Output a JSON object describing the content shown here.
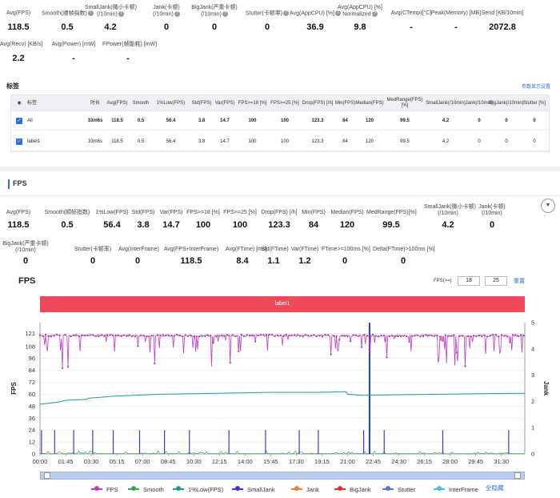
{
  "summary_metrics": [
    {
      "label": "Avg(FPS)",
      "value": "118.5"
    },
    {
      "label": "Smooth(顺帧指数)",
      "value": "0.5",
      "help": true
    },
    {
      "label": "SmallJank(微小卡顿)\n(/10min)",
      "value": "4.2",
      "help": true
    },
    {
      "label": "Jank(卡顿)\n(/10min)",
      "value": "0",
      "help": true
    },
    {
      "label": "BigJank(严重卡顿)\n(/10min)",
      "value": "0",
      "help": true
    },
    {
      "label": "Stutter(卡顿率)",
      "value": "0",
      "help": true
    },
    {
      "label": "Avg(AppCPU) [%]",
      "value": "36.9",
      "help": true
    },
    {
      "label": "Avg(AppCPU) [%]\nNormalized",
      "value": "9.8",
      "help": true
    },
    {
      "label": "Avg(CTemp)[°C]",
      "value": "-"
    },
    {
      "label": "Peak(Memory) [MB]",
      "value": "-"
    },
    {
      "label": "Send [KB/10min]",
      "value": "2072.8"
    },
    {
      "label": "Avg(Recv) [KB/s]",
      "value": "2.2"
    },
    {
      "label": "Avg(Power) [mW]",
      "value": "-"
    },
    {
      "label": "FPower(帧能耗) [mW]",
      "value": "-"
    }
  ],
  "labels_section": {
    "title": "标签",
    "param_link": "参数显示设置",
    "columns": [
      "标签",
      "时长",
      "Avg(FPS)",
      "Smooth",
      "1%Low(FPS)",
      "Std(FPS)",
      "Var(FPS)",
      "FPS>=18 [%]",
      "FPS>=25 [%]",
      "Drop(FPS) [/h]",
      "Min(FPS)",
      "Median(FPS)",
      "MedRange(FPS)[%]",
      "SmallJank\n(/10min)",
      "Jank\n(/10min)",
      "BigJank\n(/10min)",
      "Stutter [%]"
    ],
    "rows": [
      [
        "All",
        "33m6s",
        "118.5",
        "0.5",
        "56.4",
        "3.8",
        "14.7",
        "100",
        "100",
        "123.3",
        "84",
        "120",
        "99.5",
        "4.2",
        "0",
        "0",
        "0"
      ],
      [
        "label1",
        "33m6s",
        "118.5",
        "0.5",
        "56.4",
        "3.8",
        "14.7",
        "100",
        "100",
        "123.3",
        "84",
        "120",
        "99.5",
        "4.2",
        "0",
        "0",
        "0"
      ]
    ]
  },
  "fps_section": {
    "title": "FPS",
    "metrics_row1": [
      {
        "label": "Avg(FPS)",
        "value": "118.5"
      },
      {
        "label": "Smooth(顺帧指数)",
        "value": "0.5"
      },
      {
        "label": "1%Low(FPS)",
        "value": "56.4"
      },
      {
        "label": "Std(FPS)",
        "value": "3.8"
      },
      {
        "label": "Var(FPS)",
        "value": "14.7"
      },
      {
        "label": "FPS>=18 [%]",
        "value": "100"
      },
      {
        "label": "FPS>=25 [%]",
        "value": "100"
      },
      {
        "label": "Drop(FPS) [/h]",
        "value": "123.3"
      },
      {
        "label": "Min(FPS)",
        "value": "84"
      },
      {
        "label": "Median(FPS)",
        "value": "120"
      },
      {
        "label": "MedRange(FPS)[%]",
        "value": "99.5"
      },
      {
        "label": "SmallJank(微小卡顿)\n(/10min)",
        "value": "4.2"
      },
      {
        "label": "Jank(卡顿)\n(/10min)",
        "value": "0"
      }
    ],
    "metrics_row2": [
      {
        "label": "BigJank(严重卡顿)\n(/10min)",
        "value": "0"
      },
      {
        "label": "Stutter(卡顿率)",
        "value": "0"
      },
      {
        "label": "Avg(InterFrame)",
        "value": "0"
      },
      {
        "label": "Avg(FPS+InterFrame)",
        "value": "118.5"
      },
      {
        "label": "Avg(FTime) [ms]",
        "value": "8.4"
      },
      {
        "label": "Std(FTime)",
        "value": "1.1"
      },
      {
        "label": "Var(FTime)",
        "value": "1.2"
      },
      {
        "label": "FTime>=100ms [%]",
        "value": "0"
      },
      {
        "label": "Delta(FTime)>100ms [%]",
        "value": "0"
      }
    ]
  },
  "chart_header": {
    "title": "FPS",
    "fps_ge_label": "FPS(>=)",
    "fps_ge_values": [
      "18",
      "25"
    ],
    "reset": "重置",
    "label_bar": "label1"
  },
  "chart_data": {
    "type": "line",
    "ylabel": "FPS",
    "y2label": "Jank",
    "yticks": [
      0,
      12,
      24,
      36,
      48,
      60,
      72,
      84,
      96,
      108,
      121
    ],
    "y2ticks": [
      0,
      1,
      2,
      3,
      4,
      5
    ],
    "ylim": [
      0,
      132
    ],
    "y2lim": [
      0,
      5
    ],
    "xticks": [
      "00:00",
      "01:45",
      "03:30",
      "05:15",
      "07:00",
      "08:45",
      "10:30",
      "12:15",
      "14:00",
      "15:45",
      "17:30",
      "19:15",
      "21:00",
      "22:45",
      "24:30",
      "26:15",
      "28:00",
      "29:45",
      "31:30"
    ],
    "duration_min": 33.1,
    "series": [
      {
        "name": "FPS",
        "color": "#c03cc0",
        "base": 120
      },
      {
        "name": "Smooth",
        "color": "#3aa55a"
      },
      {
        "name": "1%Low(FPS)",
        "color": "#1a9d8a"
      },
      {
        "name": "SmallJank",
        "color": "#3a3ac8",
        "jank_times_min": [
          0.1,
          1.0,
          2.3,
          3.6,
          5.0,
          6.8,
          8.5,
          10.2,
          12.9,
          15.4,
          17.7,
          19.0,
          22.1,
          23.5,
          27.5,
          32.0
        ],
        "spike_min": 22.5
      },
      {
        "name": "Jank",
        "color": "#f08030"
      },
      {
        "name": "BigJank",
        "color": "#e03030"
      },
      {
        "name": "Stutter",
        "color": "#4a7de0"
      },
      {
        "name": "InterFrame",
        "color": "#40c0e0"
      }
    ],
    "low_fps_points": [
      [
        0,
        50
      ],
      [
        1.2,
        52
      ],
      [
        1.8,
        54
      ],
      [
        3.2,
        55
      ],
      [
        3.3,
        56
      ],
      [
        5,
        58
      ],
      [
        8,
        60
      ],
      [
        12,
        61
      ],
      [
        16,
        62
      ],
      [
        19,
        62
      ],
      [
        20.9,
        62.5
      ],
      [
        21,
        60
      ],
      [
        22,
        59
      ],
      [
        24,
        59.5
      ],
      [
        27,
        60
      ],
      [
        30,
        60.5
      ],
      [
        33.1,
        61
      ]
    ]
  },
  "legend": [
    {
      "name": "FPS",
      "color": "#c03cc0"
    },
    {
      "name": "Smooth",
      "color": "#3aa55a"
    },
    {
      "name": "1%Low(FPS)",
      "color": "#1a9d8a"
    },
    {
      "name": "SmallJank",
      "color": "#3a3ac8"
    },
    {
      "name": "Jank",
      "color": "#f08030"
    },
    {
      "name": "BigJank",
      "color": "#e03030"
    },
    {
      "name": "Stutter",
      "color": "#4a7de0"
    },
    {
      "name": "InterFrame",
      "color": "#40c0e0"
    }
  ],
  "legend_hide_all": "全隐藏"
}
